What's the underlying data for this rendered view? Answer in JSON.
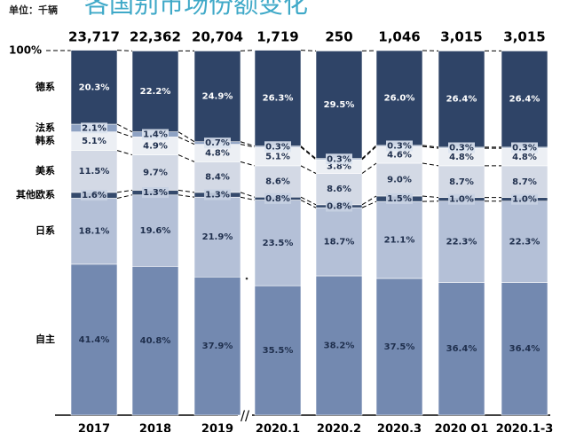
{
  "chart_data": {
    "type": "stacked_bar",
    "title": "各国别市场份额变化",
    "subtitle": "单位：千辆",
    "categories": [
      "2017",
      "2018",
      "2019",
      "2020.1",
      "2020.2",
      "2020.3",
      "2020 Q1",
      "2020.1-3"
    ],
    "totals": {
      "values": [
        23717,
        22362,
        20704,
        1719,
        250,
        1046,
        3015,
        3015
      ],
      "value_labels": [
        "23,717",
        "22,362",
        "20,704",
        "1,719",
        "250",
        "1,046",
        "3,015",
        "3,015"
      ]
    },
    "ylim": [
      0,
      100
    ],
    "yticks": [
      {
        "value": 100,
        "label": "100%"
      }
    ],
    "series": [
      {
        "name": "自主",
        "color": "#7389b0",
        "values": [
          41.4,
          40.8,
          37.9,
          35.5,
          38.2,
          37.5,
          36.4,
          36.4
        ],
        "value_labels": [
          "41.4%",
          "40.8%",
          "37.9%",
          "35.5%",
          "38.2%",
          "37.5%",
          "36.4%",
          "36.4%"
        ]
      },
      {
        "name": "日系",
        "color": "#b4c0d7",
        "values": [
          18.1,
          19.6,
          21.9,
          23.5,
          18.7,
          21.1,
          22.3,
          22.3
        ],
        "value_labels": [
          "18.1%",
          "19.6%",
          "21.9%",
          "23.5%",
          "18.7%",
          "21.1%",
          "22.3%",
          "22.3%"
        ]
      },
      {
        "name": "其他欧系",
        "color": "#34496b",
        "values": [
          1.6,
          1.3,
          1.3,
          0.8,
          0.8,
          1.5,
          1.0,
          1.0
        ],
        "value_labels": [
          "1.6%",
          "1.3%",
          "1.3%",
          "0.8%",
          "0.8%",
          "1.5%",
          "1.0%",
          "1.0%"
        ]
      },
      {
        "name": "美系",
        "color": "#d3d9e5",
        "values": [
          11.5,
          9.7,
          8.4,
          8.6,
          8.6,
          9.0,
          8.7,
          8.7
        ],
        "value_labels": [
          "11.5%",
          "9.7%",
          "8.4%",
          "8.6%",
          "8.6%",
          "9.0%",
          "8.7%",
          "8.7%"
        ]
      },
      {
        "name": "韩系",
        "color": "#eceff4",
        "values": [
          5.1,
          4.9,
          4.8,
          5.1,
          3.8,
          4.6,
          4.8,
          4.8
        ],
        "value_labels": [
          "5.1%",
          "4.9%",
          "4.8%",
          "5.1%",
          "3.8%",
          "4.6%",
          "4.8%",
          "4.8%"
        ]
      },
      {
        "name": "法系",
        "color": "#8ea2c3",
        "values": [
          2.1,
          1.4,
          0.7,
          0.3,
          0.3,
          0.3,
          0.3,
          0.3
        ],
        "value_labels": [
          "2.1%",
          "1.4%",
          "0.7%",
          "0.3%",
          "0.3%",
          "0.3%",
          "0.3%",
          "0.3%"
        ]
      },
      {
        "name": "德系",
        "color": "#2f4467",
        "values": [
          20.3,
          22.2,
          24.9,
          26.3,
          29.5,
          26.0,
          26.4,
          26.4
        ],
        "value_labels": [
          "20.3%",
          "22.2%",
          "24.9%",
          "26.3%",
          "29.5%",
          "26.0%",
          "26.4%",
          "26.4%"
        ]
      }
    ]
  }
}
